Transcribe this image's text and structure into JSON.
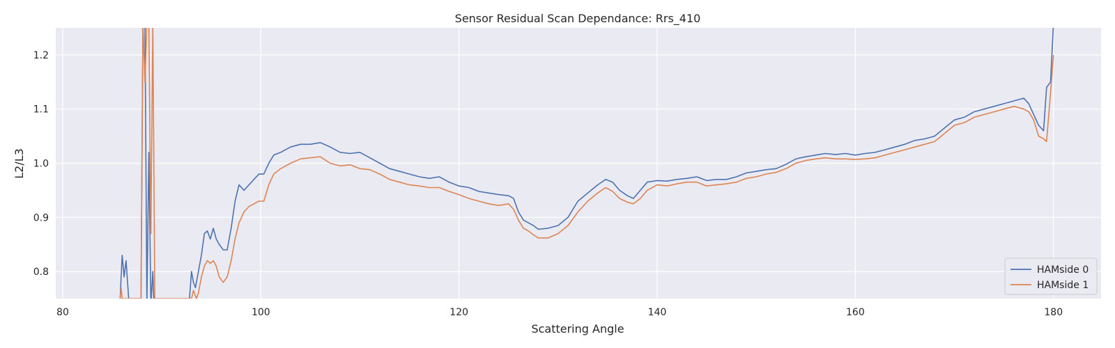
{
  "chart_data": {
    "type": "line",
    "title": "Sensor Residual Scan Dependance: Rrs_410",
    "xlabel": "Scattering Angle",
    "ylabel": "L2/L3",
    "xlim": [
      79.3,
      184.8
    ],
    "ylim": [
      0.75,
      1.25
    ],
    "xticks": [
      80,
      100,
      120,
      140,
      160,
      180
    ],
    "yticks": [
      0.8,
      0.9,
      1.0,
      1.1,
      1.2
    ],
    "xtick_labels": [
      "80",
      "100",
      "120",
      "140",
      "160",
      "180"
    ],
    "ytick_labels": [
      "0.8",
      "0.9",
      "1.0",
      "1.1",
      "1.2"
    ],
    "grid": true,
    "background": "#eaeaf2",
    "legend_position": "lower-right",
    "series": [
      {
        "name": "HAMside 0",
        "color": "#4c72b0",
        "points": [
          [
            85.8,
            0.75
          ],
          [
            86.0,
            0.83
          ],
          [
            86.2,
            0.79
          ],
          [
            86.4,
            0.82
          ],
          [
            86.7,
            0.74
          ],
          [
            87.9,
            0.74
          ],
          [
            88.1,
            1.26
          ],
          [
            88.3,
            1.26
          ],
          [
            88.5,
            0.74
          ],
          [
            88.7,
            1.02
          ],
          [
            88.9,
            0.74
          ],
          [
            89.1,
            0.8
          ],
          [
            89.2,
            0.74
          ],
          [
            92.8,
            0.75
          ],
          [
            93.0,
            0.8
          ],
          [
            93.2,
            0.78
          ],
          [
            93.4,
            0.77
          ],
          [
            93.7,
            0.8
          ],
          [
            94.0,
            0.83
          ],
          [
            94.3,
            0.87
          ],
          [
            94.6,
            0.875
          ],
          [
            94.9,
            0.86
          ],
          [
            95.2,
            0.88
          ],
          [
            95.5,
            0.86
          ],
          [
            95.8,
            0.85
          ],
          [
            96.2,
            0.84
          ],
          [
            96.6,
            0.84
          ],
          [
            97.0,
            0.88
          ],
          [
            97.4,
            0.93
          ],
          [
            97.8,
            0.96
          ],
          [
            98.3,
            0.95
          ],
          [
            98.8,
            0.96
          ],
          [
            99.3,
            0.97
          ],
          [
            99.8,
            0.98
          ],
          [
            100.3,
            0.98
          ],
          [
            100.8,
            1.0
          ],
          [
            101.3,
            1.015
          ],
          [
            102.0,
            1.02
          ],
          [
            103.0,
            1.03
          ],
          [
            104.0,
            1.035
          ],
          [
            105.0,
            1.035
          ],
          [
            106.0,
            1.038
          ],
          [
            107.0,
            1.03
          ],
          [
            108.0,
            1.02
          ],
          [
            109.0,
            1.018
          ],
          [
            110.0,
            1.02
          ],
          [
            111.0,
            1.01
          ],
          [
            112.0,
            1.0
          ],
          [
            113.0,
            0.99
          ],
          [
            114.0,
            0.985
          ],
          [
            115.0,
            0.98
          ],
          [
            116.0,
            0.975
          ],
          [
            117.0,
            0.972
          ],
          [
            118.0,
            0.975
          ],
          [
            119.0,
            0.965
          ],
          [
            120.0,
            0.958
          ],
          [
            121.0,
            0.955
          ],
          [
            122.0,
            0.948
          ],
          [
            123.0,
            0.945
          ],
          [
            124.0,
            0.942
          ],
          [
            125.0,
            0.94
          ],
          [
            125.5,
            0.935
          ],
          [
            126.0,
            0.91
          ],
          [
            126.5,
            0.895
          ],
          [
            127.0,
            0.89
          ],
          [
            127.5,
            0.885
          ],
          [
            128.0,
            0.878
          ],
          [
            129.0,
            0.88
          ],
          [
            130.0,
            0.885
          ],
          [
            131.0,
            0.9
          ],
          [
            132.0,
            0.93
          ],
          [
            133.0,
            0.945
          ],
          [
            134.0,
            0.96
          ],
          [
            134.8,
            0.97
          ],
          [
            135.5,
            0.965
          ],
          [
            136.2,
            0.95
          ],
          [
            137.0,
            0.94
          ],
          [
            137.6,
            0.935
          ],
          [
            138.3,
            0.95
          ],
          [
            139.0,
            0.965
          ],
          [
            140.0,
            0.968
          ],
          [
            141.0,
            0.967
          ],
          [
            142.0,
            0.97
          ],
          [
            143.0,
            0.972
          ],
          [
            144.0,
            0.975
          ],
          [
            145.0,
            0.968
          ],
          [
            146.0,
            0.97
          ],
          [
            147.0,
            0.97
          ],
          [
            148.0,
            0.975
          ],
          [
            149.0,
            0.982
          ],
          [
            150.0,
            0.985
          ],
          [
            151.0,
            0.988
          ],
          [
            152.0,
            0.99
          ],
          [
            153.0,
            0.998
          ],
          [
            154.0,
            1.008
          ],
          [
            155.0,
            1.012
          ],
          [
            156.0,
            1.015
          ],
          [
            157.0,
            1.018
          ],
          [
            158.0,
            1.016
          ],
          [
            159.0,
            1.018
          ],
          [
            160.0,
            1.015
          ],
          [
            161.0,
            1.018
          ],
          [
            162.0,
            1.02
          ],
          [
            163.0,
            1.025
          ],
          [
            164.0,
            1.03
          ],
          [
            165.0,
            1.035
          ],
          [
            166.0,
            1.042
          ],
          [
            167.0,
            1.045
          ],
          [
            168.0,
            1.05
          ],
          [
            169.0,
            1.065
          ],
          [
            170.0,
            1.08
          ],
          [
            171.0,
            1.085
          ],
          [
            172.0,
            1.095
          ],
          [
            173.0,
            1.1
          ],
          [
            174.0,
            1.105
          ],
          [
            175.0,
            1.11
          ],
          [
            176.0,
            1.115
          ],
          [
            177.0,
            1.12
          ],
          [
            177.5,
            1.11
          ],
          [
            178.0,
            1.09
          ],
          [
            178.5,
            1.07
          ],
          [
            179.0,
            1.06
          ],
          [
            179.3,
            1.14
          ],
          [
            179.7,
            1.15
          ],
          [
            180.0,
            1.26
          ]
        ]
      },
      {
        "name": "HAMside 1",
        "color": "#dd8452",
        "points": [
          [
            85.8,
            0.75
          ],
          [
            85.9,
            0.77
          ],
          [
            86.0,
            0.75
          ],
          [
            87.9,
            0.75
          ],
          [
            88.1,
            1.26
          ],
          [
            88.3,
            1.15
          ],
          [
            88.5,
            1.26
          ],
          [
            88.7,
            1.26
          ],
          [
            88.9,
            0.87
          ],
          [
            89.1,
            1.26
          ],
          [
            89.3,
            0.75
          ],
          [
            93.0,
            0.75
          ],
          [
            93.2,
            0.765
          ],
          [
            93.5,
            0.75
          ],
          [
            93.7,
            0.76
          ],
          [
            94.0,
            0.79
          ],
          [
            94.3,
            0.81
          ],
          [
            94.6,
            0.82
          ],
          [
            94.9,
            0.815
          ],
          [
            95.2,
            0.82
          ],
          [
            95.5,
            0.81
          ],
          [
            95.8,
            0.79
          ],
          [
            96.2,
            0.78
          ],
          [
            96.6,
            0.79
          ],
          [
            97.0,
            0.82
          ],
          [
            97.4,
            0.86
          ],
          [
            97.8,
            0.89
          ],
          [
            98.3,
            0.91
          ],
          [
            98.8,
            0.92
          ],
          [
            99.3,
            0.925
          ],
          [
            99.8,
            0.93
          ],
          [
            100.3,
            0.93
          ],
          [
            100.8,
            0.96
          ],
          [
            101.3,
            0.98
          ],
          [
            102.0,
            0.99
          ],
          [
            103.0,
            1.0
          ],
          [
            104.0,
            1.008
          ],
          [
            105.0,
            1.01
          ],
          [
            106.0,
            1.012
          ],
          [
            107.0,
            1.0
          ],
          [
            108.0,
            0.995
          ],
          [
            109.0,
            0.997
          ],
          [
            110.0,
            0.99
          ],
          [
            111.0,
            0.988
          ],
          [
            112.0,
            0.98
          ],
          [
            113.0,
            0.97
          ],
          [
            114.0,
            0.965
          ],
          [
            115.0,
            0.96
          ],
          [
            116.0,
            0.958
          ],
          [
            117.0,
            0.955
          ],
          [
            118.0,
            0.955
          ],
          [
            119.0,
            0.948
          ],
          [
            120.0,
            0.942
          ],
          [
            121.0,
            0.935
          ],
          [
            122.0,
            0.93
          ],
          [
            123.0,
            0.925
          ],
          [
            124.0,
            0.922
          ],
          [
            125.0,
            0.925
          ],
          [
            125.5,
            0.915
          ],
          [
            126.0,
            0.895
          ],
          [
            126.5,
            0.88
          ],
          [
            127.0,
            0.875
          ],
          [
            127.5,
            0.868
          ],
          [
            128.0,
            0.862
          ],
          [
            129.0,
            0.862
          ],
          [
            130.0,
            0.87
          ],
          [
            131.0,
            0.885
          ],
          [
            132.0,
            0.91
          ],
          [
            133.0,
            0.93
          ],
          [
            134.0,
            0.945
          ],
          [
            134.8,
            0.955
          ],
          [
            135.5,
            0.948
          ],
          [
            136.2,
            0.935
          ],
          [
            137.0,
            0.928
          ],
          [
            137.6,
            0.925
          ],
          [
            138.3,
            0.935
          ],
          [
            139.0,
            0.95
          ],
          [
            140.0,
            0.96
          ],
          [
            141.0,
            0.958
          ],
          [
            142.0,
            0.962
          ],
          [
            143.0,
            0.965
          ],
          [
            144.0,
            0.965
          ],
          [
            145.0,
            0.958
          ],
          [
            146.0,
            0.96
          ],
          [
            147.0,
            0.962
          ],
          [
            148.0,
            0.965
          ],
          [
            149.0,
            0.972
          ],
          [
            150.0,
            0.975
          ],
          [
            151.0,
            0.98
          ],
          [
            152.0,
            0.983
          ],
          [
            153.0,
            0.99
          ],
          [
            154.0,
            1.0
          ],
          [
            155.0,
            1.005
          ],
          [
            156.0,
            1.008
          ],
          [
            157.0,
            1.01
          ],
          [
            158.0,
            1.008
          ],
          [
            159.0,
            1.008
          ],
          [
            160.0,
            1.007
          ],
          [
            161.0,
            1.008
          ],
          [
            162.0,
            1.01
          ],
          [
            163.0,
            1.015
          ],
          [
            164.0,
            1.02
          ],
          [
            165.0,
            1.025
          ],
          [
            166.0,
            1.03
          ],
          [
            167.0,
            1.035
          ],
          [
            168.0,
            1.04
          ],
          [
            169.0,
            1.055
          ],
          [
            170.0,
            1.07
          ],
          [
            171.0,
            1.075
          ],
          [
            172.0,
            1.085
          ],
          [
            173.0,
            1.09
          ],
          [
            174.0,
            1.095
          ],
          [
            175.0,
            1.1
          ],
          [
            176.0,
            1.105
          ],
          [
            177.0,
            1.1
          ],
          [
            177.5,
            1.095
          ],
          [
            178.0,
            1.08
          ],
          [
            178.5,
            1.05
          ],
          [
            179.0,
            1.045
          ],
          [
            179.3,
            1.04
          ],
          [
            179.7,
            1.13
          ],
          [
            180.0,
            1.2
          ]
        ]
      }
    ]
  }
}
